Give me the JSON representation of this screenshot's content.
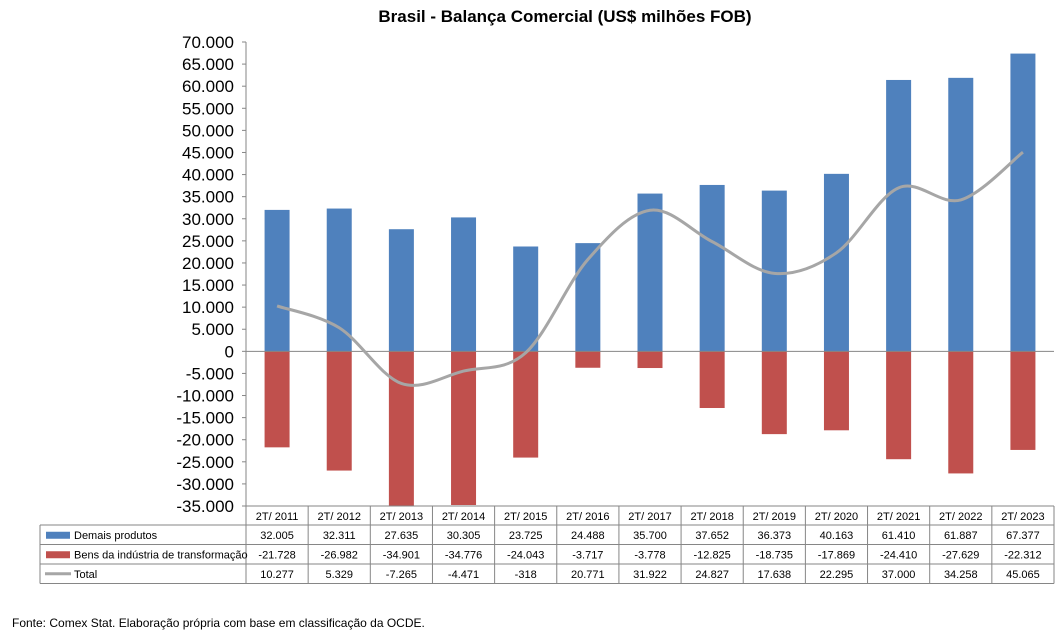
{
  "chart_data": {
    "type": "bar",
    "title": "Brasil - Balança Comercial (US$ milhões FOB)",
    "categories": [
      "2T/ 2011",
      "2T/ 2012",
      "2T/ 2013",
      "2T/ 2014",
      "2T/ 2015",
      "2T/ 2016",
      "2T/ 2017",
      "2T/ 2018",
      "2T/ 2019",
      "2T/ 2020",
      "2T/ 2021",
      "2T/ 2022",
      "2T/ 2023"
    ],
    "ylim": [
      -35000,
      70000
    ],
    "yticks": [
      70000,
      65000,
      60000,
      55000,
      50000,
      45000,
      40000,
      35000,
      30000,
      25000,
      20000,
      15000,
      10000,
      5000,
      0,
      -5000,
      -10000,
      -15000,
      -20000,
      -25000,
      -30000,
      -35000
    ],
    "ytick_labels": [
      "70.000",
      "65.000",
      "60.000",
      "55.000",
      "50.000",
      "45.000",
      "40.000",
      "35.000",
      "30.000",
      "25.000",
      "20.000",
      "15.000",
      "10.000",
      "5.000",
      "0",
      "-5.000",
      "-10.000",
      "-15.000",
      "-20.000",
      "-25.000",
      "-30.000",
      "-35.000"
    ],
    "legend_placement": "data-table",
    "series": [
      {
        "name": "Demais produtos",
        "kind": "bar",
        "color": "#4f81bd",
        "values": [
          32005,
          32311,
          27635,
          30305,
          23725,
          24488,
          35700,
          37652,
          36373,
          40163,
          61410,
          61887,
          67377
        ],
        "labels": [
          "32.005",
          "32.311",
          "27.635",
          "30.305",
          "23.725",
          "24.488",
          "35.700",
          "37.652",
          "36.373",
          "40.163",
          "61.410",
          "61.887",
          "67.377"
        ]
      },
      {
        "name": "Bens da indústria de transformação",
        "kind": "bar",
        "color": "#c0504d",
        "values": [
          -21728,
          -26982,
          -34901,
          -34776,
          -24043,
          -3717,
          -3778,
          -12825,
          -18735,
          -17869,
          -24410,
          -27629,
          -22312
        ],
        "labels": [
          "-21.728",
          "-26.982",
          "-34.901",
          "-34.776",
          "-24.043",
          "-3.717",
          "-3.778",
          "-12.825",
          "-18.735",
          "-17.869",
          "-24.410",
          "-27.629",
          "-22.312"
        ]
      },
      {
        "name": "Total",
        "kind": "line",
        "color": "#a6a6a6",
        "values": [
          10277,
          5329,
          -7265,
          -4471,
          -318,
          20771,
          31922,
          24827,
          17638,
          22295,
          37000,
          34258,
          45065
        ],
        "labels": [
          "10.277",
          "5.329",
          "-7.265",
          "-4.471",
          "-318",
          "20.771",
          "31.922",
          "24.827",
          "17.638",
          "22.295",
          "37.000",
          "34.258",
          "45.065"
        ]
      }
    ]
  },
  "source_note": "Fonte: Comex Stat. Elaboração própria com base em classificação da OCDE."
}
